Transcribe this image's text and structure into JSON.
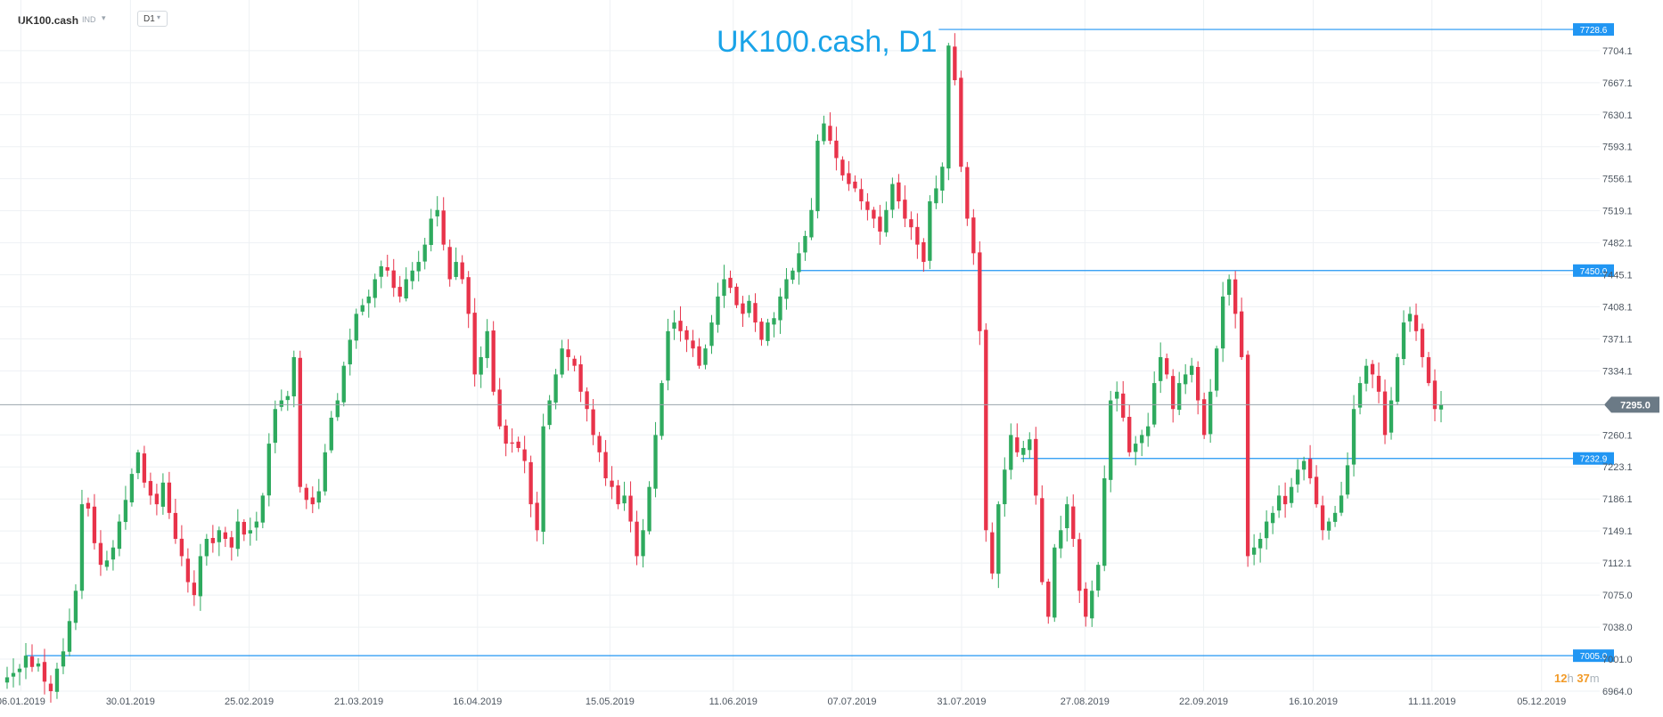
{
  "toolbar": {
    "symbol": "UK100.cash",
    "instrument_type": "IND",
    "timeframe": "D1"
  },
  "chart_title": "UK100.cash, D1",
  "countdown": {
    "hours": "12",
    "h": "h",
    "minutes": "37",
    "m": "m"
  },
  "colors": {
    "bull": "#2eaa5e",
    "bear": "#e8334a",
    "level_line": "#2196f3",
    "price_tag": "#2196f3",
    "current_tag": "#6b7a86",
    "title": "#19a3e8",
    "grid": "#eef1f4"
  },
  "chart_data": {
    "type": "candlestick",
    "title": "UK100.cash, D1",
    "ylim": [
      6964.0,
      7740.0
    ],
    "y_ticks": [
      "7704.1",
      "7667.1",
      "7630.1",
      "7593.1",
      "7556.1",
      "7519.1",
      "7482.1",
      "7445.1",
      "7408.1",
      "7371.1",
      "7334.1",
      "7260.1",
      "7223.1",
      "7186.1",
      "7149.1",
      "7112.1",
      "7075.0",
      "7038.0",
      "7001.0",
      "6964.0"
    ],
    "x_ticks": [
      "06.01.2019",
      "30.01.2019",
      "25.02.2019",
      "21.03.2019",
      "16.04.2019",
      "15.05.2019",
      "11.06.2019",
      "07.07.2019",
      "31.07.2019",
      "27.08.2019",
      "22.09.2019",
      "16.10.2019",
      "11.11.2019",
      "05.12.2019"
    ],
    "current_price": "7295.0",
    "levels": [
      {
        "price": "7728.6",
        "from": "26.07.2019"
      },
      {
        "price": "7450.0",
        "from": "25.06.2019"
      },
      {
        "price": "7232.9",
        "from": "13.08.2019"
      },
      {
        "price": "7005.0",
        "from": "07.01.2019"
      }
    ],
    "closes": [
      6980,
      6985,
      6990,
      7005,
      6992,
      6996,
      6975,
      6964,
      6990,
      7010,
      7045,
      7080,
      7180,
      7175,
      7135,
      7110,
      7115,
      7130,
      7160,
      7185,
      7215,
      7240,
      7205,
      7190,
      7180,
      7205,
      7170,
      7140,
      7120,
      7090,
      7075,
      7120,
      7140,
      7135,
      7150,
      7140,
      7130,
      7160,
      7145,
      7150,
      7160,
      7190,
      7250,
      7290,
      7300,
      7305,
      7350,
      7200,
      7185,
      7180,
      7195,
      7240,
      7280,
      7300,
      7340,
      7370,
      7400,
      7410,
      7420,
      7440,
      7455,
      7450,
      7430,
      7420,
      7440,
      7450,
      7460,
      7480,
      7510,
      7520,
      7480,
      7440,
      7460,
      7440,
      7400,
      7330,
      7350,
      7380,
      7310,
      7270,
      7250,
      7250,
      7245,
      7230,
      7180,
      7150,
      7270,
      7300,
      7330,
      7360,
      7350,
      7340,
      7310,
      7290,
      7260,
      7240,
      7210,
      7200,
      7180,
      7190,
      7160,
      7120,
      7150,
      7200,
      7260,
      7320,
      7380,
      7390,
      7380,
      7370,
      7360,
      7340,
      7360,
      7390,
      7420,
      7440,
      7430,
      7410,
      7400,
      7415,
      7390,
      7370,
      7390,
      7395,
      7420,
      7440,
      7450,
      7470,
      7490,
      7520,
      7600,
      7620,
      7600,
      7580,
      7560,
      7550,
      7545,
      7530,
      7520,
      7510,
      7495,
      7520,
      7550,
      7530,
      7510,
      7500,
      7480,
      7460,
      7530,
      7545,
      7570,
      7710,
      7670,
      7570,
      7510,
      7470,
      7380,
      7150,
      7100,
      7180,
      7220,
      7260,
      7240,
      7245,
      7255,
      7190,
      7090,
      7050,
      7130,
      7150,
      7180,
      7140,
      7080,
      7050,
      7080,
      7110,
      7210,
      7300,
      7310,
      7280,
      7240,
      7250,
      7260,
      7270,
      7320,
      7350,
      7330,
      7290,
      7320,
      7330,
      7340,
      7300,
      7260,
      7310,
      7360,
      7420,
      7440,
      7400,
      7350,
      7120,
      7130,
      7140,
      7160,
      7170,
      7190,
      7180,
      7200,
      7220,
      7230,
      7210,
      7180,
      7150,
      7160,
      7170,
      7190,
      7225,
      7290,
      7320,
      7340,
      7330,
      7310,
      7260,
      7300,
      7350,
      7390,
      7400,
      7380,
      7350,
      7320,
      7290,
      7295
    ],
    "x_domain": [
      "03.01.2019",
      "13.11.2019"
    ]
  }
}
